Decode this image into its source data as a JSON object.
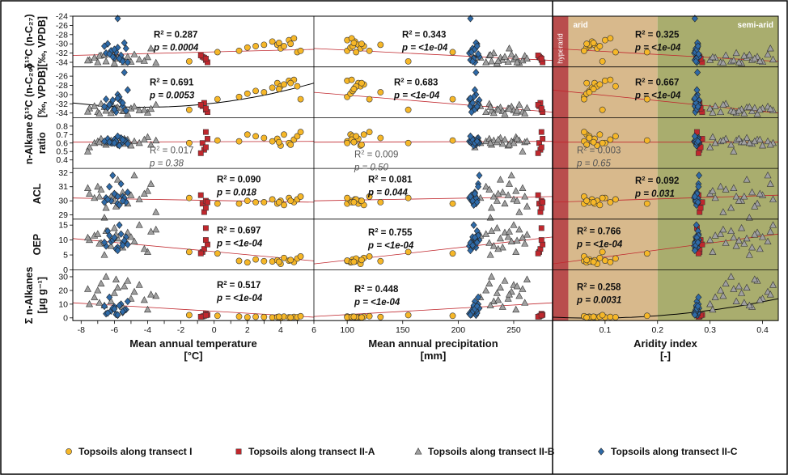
{
  "colors": {
    "hyperarid": "#b94d4d",
    "arid": "#d8b98c",
    "semiarid": "#a9ad6e",
    "transect_I": "#f6b728",
    "transect_IIA": "#c0272d",
    "transect_IIB": "#a0a0a0",
    "transect_IIC": "#2e6aa8",
    "trend_linear": "#c0272d",
    "trend_curve": "#000000"
  },
  "zones": {
    "hyperarid": "hyperarid",
    "arid": "arid",
    "semiarid": "semi-arid"
  },
  "legend": [
    {
      "label": "Topsoils along transect I",
      "shape": "circle",
      "color": "#f6b728"
    },
    {
      "label": "Topsoils along transect II-A",
      "shape": "square",
      "color": "#c0272d"
    },
    {
      "label": "Topsoils along transect II-B",
      "shape": "triangle",
      "color": "#a0a0a0"
    },
    {
      "label": "Topsoils along transect II-C",
      "shape": "diamond",
      "color": "#2e6aa8"
    }
  ],
  "rows": [
    {
      "key": "d13c27",
      "label": [
        "δ¹³C (n-C₂₇)",
        "[‰, VPDB]"
      ],
      "ylim": [
        -35,
        -24
      ],
      "ticks": [
        -24,
        -26,
        -28,
        -30,
        -32,
        -34
      ],
      "tick_labels": [
        "-24",
        "-26",
        "-28",
        "-30",
        "-32",
        "-34"
      ]
    },
    {
      "key": "d13c29",
      "label": [
        "δ¹³C (n-C₂₉)",
        "[‰, VPDB]"
      ],
      "ylim": [
        -35,
        -24
      ],
      "ticks": [
        -26,
        -28,
        -30,
        -32,
        -34
      ],
      "tick_labels": [
        "-26",
        "-28",
        "-30",
        "-32",
        "-34"
      ]
    },
    {
      "key": "ratio",
      "label": [
        "n-Alkane",
        "ratio"
      ],
      "ylim": [
        0.3,
        0.9
      ],
      "ticks": [
        0.4,
        0.5,
        0.6,
        0.7,
        0.8
      ],
      "tick_labels": [
        "0.4",
        "0.5",
        "0.6",
        "0.7",
        "0.8"
      ]
    },
    {
      "key": "acl",
      "label": [
        "ACL"
      ],
      "ylim": [
        28.7,
        32.3
      ],
      "ticks": [
        29,
        30,
        31,
        32
      ],
      "tick_labels": [
        "29",
        "30",
        "31",
        "32"
      ]
    },
    {
      "key": "oep",
      "label": [
        "OEP"
      ],
      "ylim": [
        0,
        17
      ],
      "ticks": [
        0,
        5,
        10,
        15
      ],
      "tick_labels": [
        "0",
        "5",
        "10",
        "15"
      ]
    },
    {
      "key": "sum",
      "label": [
        "Σ n-Alkanes",
        "[μg g⁻¹]"
      ],
      "ylim": [
        -2,
        35
      ],
      "ticks": [
        0,
        10,
        20,
        30
      ],
      "tick_labels": [
        "0",
        "10",
        "20",
        "30"
      ]
    }
  ],
  "cols": [
    {
      "key": "mat",
      "xlabel": [
        "Mean annual temperature",
        "[°C]"
      ],
      "xlim": [
        -8.5,
        6
      ],
      "ticks": [
        -8,
        -7,
        -6,
        -5,
        -4,
        -3,
        -2,
        -1,
        0,
        1,
        2,
        3,
        4,
        5,
        6
      ],
      "tick_labels": [
        "-8",
        "",
        "-6",
        "",
        "-4",
        "",
        "-2",
        "",
        "0",
        "",
        "2",
        "",
        "4",
        "",
        "6"
      ]
    },
    {
      "key": "map",
      "xlabel": [
        "Mean annual precipitation",
        "[mm]"
      ],
      "xlim": [
        70,
        285
      ],
      "ticks": [
        100,
        150,
        200,
        250
      ],
      "tick_labels": [
        "100",
        "150",
        "200",
        "250"
      ]
    },
    {
      "key": "ai",
      "xlabel": [
        "Aridity index",
        "[-]"
      ],
      "xlim": [
        0,
        0.43
      ],
      "ticks": [
        0.1,
        0.2,
        0.3,
        0.4
      ],
      "tick_labels": [
        "0.1",
        "0.2",
        "0.3",
        "0.4"
      ],
      "zone_bounds": [
        0.03,
        0.2
      ]
    }
  ],
  "stats": [
    [
      {
        "r2": "0.287",
        "p": "0.0004"
      },
      {
        "r2": "0.343",
        "p": "<1e-04"
      },
      {
        "r2": "0.325",
        "p": "<1e-04"
      }
    ],
    [
      {
        "r2": "0.691",
        "p": "0.0053"
      },
      {
        "r2": "0.683",
        "p": "<1e-04"
      },
      {
        "r2": "0.667",
        "p": "<1e-04"
      }
    ],
    [
      {
        "r2": "0.017",
        "p": "0.38"
      },
      {
        "r2": "0.009",
        "p": "0.50"
      },
      {
        "r2": "0.003",
        "p": "0.65"
      }
    ],
    [
      {
        "r2": "0.090",
        "p": "0.018"
      },
      {
        "r2": "0.081",
        "p": "0.044"
      },
      {
        "r2": "0.092",
        "p": "0.031"
      }
    ],
    [
      {
        "r2": "0.697",
        "p": "<1e-04"
      },
      {
        "r2": "0.755",
        "p": "<1e-04"
      },
      {
        "r2": "0.766",
        "p": "<1e-04"
      }
    ],
    [
      {
        "r2": "0.517",
        "p": "<1e-04"
      },
      {
        "r2": "0.448",
        "p": "<1e-04"
      },
      {
        "r2": "0.258",
        "p": "0.0031"
      }
    ]
  ],
  "chart_data": {
    "type": "scatter",
    "title": "",
    "layout": "6 rows × 3 columns small multiples",
    "grid": false,
    "legend_position": "bottom",
    "trend_lines": {
      "mat": [
        {
          "type": "linear",
          "y": [
            -32.5,
            -31.2
          ]
        },
        {
          "type": "quadratic",
          "y": [
            -31.8,
            -32.3,
            -27.5
          ]
        },
        {
          "type": "linear",
          "y": [
            0.61,
            0.62
          ]
        },
        {
          "type": "linear",
          "y": [
            30.2,
            29.9
          ]
        },
        {
          "type": "linear",
          "y": [
            10.5,
            3.0
          ]
        },
        {
          "type": "linear",
          "y": [
            11.0,
            0.5
          ]
        }
      ],
      "map": [
        {
          "type": "linear",
          "y": [
            -31.0,
            -33.6
          ]
        },
        {
          "type": "linear",
          "y": [
            -29.5,
            -33.8
          ]
        },
        {
          "type": "linear",
          "y": [
            0.61,
            0.62
          ]
        },
        {
          "type": "linear",
          "y": [
            30.0,
            30.3
          ]
        },
        {
          "type": "linear",
          "y": [
            2.0,
            11.0
          ]
        },
        {
          "type": "linear",
          "y": [
            1.0,
            11.0
          ]
        }
      ],
      "ai": [
        {
          "type": "linear",
          "y": [
            -31.0,
            -33.8
          ]
        },
        {
          "type": "linear",
          "y": [
            -29.0,
            -34.0
          ]
        },
        {
          "type": "linear",
          "y": [
            0.61,
            0.61
          ]
        },
        {
          "type": "linear",
          "y": [
            29.9,
            30.4
          ]
        },
        {
          "type": "linear",
          "y": [
            2.0,
            12.0
          ]
        },
        {
          "type": "quadratic",
          "y": [
            0.5,
            2.0,
            14.0
          ]
        }
      ]
    },
    "series": [
      {
        "name": "Topsoils along transect I",
        "marker": "circle",
        "mat": [
          1.5,
          2.0,
          2.5,
          3.5,
          3.8,
          4.0,
          4.2,
          4.5,
          4.8,
          5.0,
          5.2,
          3.0,
          -1.5,
          0.2,
          4.6,
          3.9
        ],
        "map": [
          100,
          103,
          105,
          107,
          110,
          112,
          115,
          100,
          104,
          108,
          120,
          130,
          155,
          195,
          113,
          106
        ],
        "ai": [
          0.06,
          0.065,
          0.07,
          0.075,
          0.08,
          0.085,
          0.09,
          0.1,
          0.11,
          0.12,
          0.06,
          0.07,
          0.095,
          0.18,
          0.065,
          0.078
        ],
        "d13c27": [
          -31.5,
          -30.8,
          -30.5,
          -29.5,
          -30.2,
          -31.0,
          -30.5,
          -29.2,
          -28.8,
          -31.8,
          -31.5,
          -30.2,
          -33.8,
          -31.8,
          -30.0,
          -29.8
        ],
        "d13c29": [
          -30.5,
          -29.8,
          -29.2,
          -28.5,
          -27.5,
          -28.2,
          -27.8,
          -27.0,
          -26.8,
          -28.2,
          -31.0,
          -29.5,
          -33.3,
          -31.0,
          -27.5,
          -28.8
        ],
        "ratio": [
          0.62,
          0.7,
          0.68,
          0.62,
          0.65,
          0.57,
          0.7,
          0.6,
          0.64,
          0.68,
          0.73,
          0.66,
          0.6,
          0.63,
          0.58,
          0.61
        ],
        "acl": [
          29.8,
          30.0,
          29.9,
          30.1,
          29.8,
          30.0,
          29.7,
          30.2,
          29.9,
          30.1,
          30.3,
          29.9,
          30.2,
          29.8,
          30.0,
          29.9
        ],
        "oep": [
          3.0,
          2.5,
          3.5,
          2.8,
          3.2,
          2.0,
          4.0,
          3.1,
          2.6,
          3.8,
          4.5,
          2.9,
          6.0,
          5.5,
          3.3,
          2.7
        ],
        "sum": [
          1.0,
          0.5,
          0.8,
          0.3,
          0.6,
          0.2,
          0.9,
          0.4,
          0.7,
          0.5,
          1.2,
          0.6,
          2.0,
          1.5,
          0.3,
          0.8
        ]
      },
      {
        "name": "Topsoils along transect II-A",
        "marker": "square",
        "mat": [
          -0.7,
          -0.5,
          -0.6,
          -0.4,
          -0.8,
          -0.5
        ],
        "map": [
          273,
          275,
          274,
          276,
          272,
          275
        ],
        "ai": [
          0.28,
          0.275,
          0.28,
          0.285,
          0.278,
          0.282
        ],
        "d13c27": [
          -32.8,
          -33.5,
          -33.0,
          -34.0,
          -32.5,
          -33.2
        ],
        "d13c29": [
          -32.5,
          -33.3,
          -31.8,
          -33.8,
          -32.2,
          -33.0
        ],
        "ratio": [
          0.6,
          0.73,
          0.52,
          0.65,
          0.48,
          0.55
        ],
        "acl": [
          29.8,
          30.0,
          29.2,
          29.9,
          30.4,
          29.5
        ],
        "oep": [
          6.0,
          14.0,
          7.0,
          8.5,
          5.5,
          10.0
        ],
        "sum": [
          1.0,
          3.0,
          1.5,
          2.2,
          0.8,
          1.8
        ]
      },
      {
        "name": "Topsoils along transect II-B",
        "marker": "triangle",
        "mat": [
          -7.5,
          -7.2,
          -7.0,
          -6.8,
          -6.5,
          -6.2,
          -6.0,
          -5.8,
          -5.5,
          -5.2,
          -5.0,
          -4.8,
          -4.5,
          -4.0,
          -3.5,
          -7.6,
          -6.9,
          -5.9,
          -4.2,
          -3.8,
          -5.4,
          -6.6
        ],
        "map": [
          215,
          220,
          225,
          228,
          230,
          232,
          235,
          238,
          240,
          242,
          245,
          248,
          250,
          252,
          255,
          258,
          260,
          262,
          236,
          246,
          253,
          229
        ],
        "ai": [
          0.3,
          0.31,
          0.32,
          0.33,
          0.34,
          0.35,
          0.36,
          0.37,
          0.38,
          0.39,
          0.4,
          0.41,
          0.42,
          0.305,
          0.325,
          0.345,
          0.365,
          0.385,
          0.395,
          0.415,
          0.355,
          0.375
        ],
        "d13c27": [
          -33.5,
          -33.0,
          -34.0,
          -32.5,
          -33.8,
          -32.0,
          -34.2,
          -33.0,
          -33.5,
          -32.8,
          -33.9,
          -32.3,
          -33.4,
          -32.9,
          -34.1,
          -33.6,
          -32.6,
          -33.2,
          -33.7,
          -31.0,
          -34.0,
          -32.4
        ],
        "d13c29": [
          -33.0,
          -32.5,
          -33.8,
          -32.0,
          -33.5,
          -34.0,
          -33.2,
          -32.8,
          -33.6,
          -34.2,
          -33.0,
          -32.6,
          -33.4,
          -33.9,
          -32.2,
          -33.7,
          -34.1,
          -32.9,
          -33.3,
          -33.1,
          -33.5,
          -32.7
        ],
        "ratio": [
          0.55,
          0.6,
          0.62,
          0.65,
          0.58,
          0.63,
          0.61,
          0.66,
          0.59,
          0.64,
          0.57,
          0.62,
          0.6,
          0.67,
          0.63,
          0.5,
          0.61,
          0.62,
          0.64,
          0.58,
          0.65,
          0.6
        ],
        "acl": [
          30.5,
          30.2,
          31.0,
          30.8,
          29.5,
          30.3,
          30.0,
          31.5,
          30.6,
          29.8,
          30.4,
          31.8,
          30.1,
          30.7,
          29.2,
          30.9,
          30.3,
          29.6,
          30.5,
          31.2,
          30.0,
          28.8
        ],
        "oep": [
          10.0,
          11.5,
          12.0,
          9.0,
          13.0,
          8.0,
          14.0,
          10.5,
          7.5,
          12.5,
          11.0,
          9.5,
          15.0,
          6.0,
          13.5,
          10.8,
          8.8,
          11.8,
          7.0,
          12.8,
          9.8,
          5.0
        ],
        "sum": [
          10.0,
          15.0,
          20.0,
          25.0,
          30.0,
          12.0,
          18.0,
          22.0,
          8.0,
          27.0,
          14.0,
          19.0,
          24.0,
          6.0,
          16.0,
          21.0,
          11.0,
          28.0,
          13.0,
          17.0,
          23.0,
          9.0
        ]
      },
      {
        "name": "Topsoils along transect II-C",
        "marker": "diamond",
        "mat": [
          -6.5,
          -6.2,
          -6.0,
          -5.8,
          -5.6,
          -5.5,
          -5.3,
          -5.2,
          -6.4,
          -6.1,
          -5.9,
          -5.7,
          -5.4,
          -6.3,
          -5.5,
          -6.0,
          -5.8,
          -6.6
        ],
        "map": [
          210,
          212,
          214,
          216,
          218,
          211,
          213,
          215,
          217,
          219,
          212,
          214,
          216,
          218,
          213,
          215,
          211,
          217
        ],
        "ai": [
          0.27,
          0.272,
          0.274,
          0.276,
          0.278,
          0.271,
          0.273,
          0.275,
          0.277,
          0.279,
          0.272,
          0.274,
          0.276,
          0.278,
          0.273,
          0.275,
          0.271,
          0.277
        ],
        "d13c27": [
          -32.0,
          -31.5,
          -33.0,
          -30.8,
          -32.5,
          -33.5,
          -31.0,
          -34.0,
          -30.0,
          -32.8,
          -31.8,
          -33.2,
          -29.8,
          -32.2,
          -33.8,
          -31.2,
          -24.5,
          -30.5
        ],
        "d13c29": [
          -31.0,
          -32.0,
          -33.0,
          -30.0,
          -31.5,
          -32.5,
          -33.5,
          -29.0,
          -32.8,
          -31.2,
          -33.8,
          -30.5,
          -25.2,
          -32.2,
          -31.8,
          -33.2,
          -30.8,
          -32.6
        ],
        "ratio": [
          0.62,
          0.6,
          0.64,
          0.58,
          0.66,
          0.61,
          0.63,
          0.59,
          0.65,
          0.6,
          0.62,
          0.57,
          0.63,
          0.61,
          0.64,
          0.6,
          0.68,
          0.62
        ],
        "acl": [
          30.2,
          30.0,
          30.5,
          29.8,
          31.2,
          30.3,
          29.9,
          30.6,
          30.1,
          31.8,
          30.4,
          29.7,
          30.2,
          31.0,
          30.0,
          30.5,
          30.3,
          29.9
        ],
        "oep": [
          8.0,
          9.5,
          10.5,
          7.5,
          12.0,
          9.0,
          11.0,
          8.5,
          13.0,
          10.0,
          7.0,
          15.0,
          9.8,
          11.5,
          8.2,
          10.8,
          6.5,
          9.2
        ],
        "sum": [
          3.0,
          5.0,
          8.0,
          2.0,
          10.0,
          4.0,
          6.0,
          12.0,
          3.5,
          7.0,
          2.5,
          9.0,
          5.5,
          15.0,
          4.5,
          6.5,
          2.2,
          8.5
        ]
      }
    ]
  }
}
